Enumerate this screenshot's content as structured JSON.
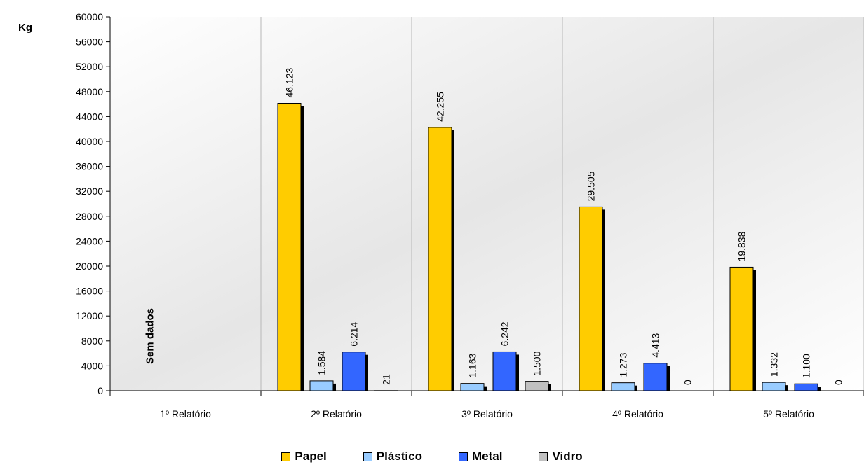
{
  "chart_data": {
    "type": "bar",
    "ylabel": "Kg",
    "ylim": [
      0,
      60000
    ],
    "yticks": [
      0,
      4000,
      8000,
      12000,
      16000,
      20000,
      24000,
      28000,
      32000,
      36000,
      40000,
      44000,
      48000,
      52000,
      56000,
      60000
    ],
    "categories": [
      "1º Relatório",
      "2º Relatório",
      "3º Relatório",
      "4º Relatório",
      "5º Relatório"
    ],
    "series": [
      {
        "name": "Papel",
        "color": "#FFCC00",
        "values": [
          null,
          46123,
          42255,
          29505,
          19838
        ],
        "labels": [
          "",
          "46.123",
          "42.255",
          "29.505",
          "19.838"
        ]
      },
      {
        "name": "Plástico",
        "color": "#99CCFF",
        "values": [
          null,
          1584,
          1163,
          1273,
          1332
        ],
        "labels": [
          "",
          "1.584",
          "1.163",
          "1.273",
          "1.332"
        ]
      },
      {
        "name": "Metal",
        "color": "#3366FF",
        "values": [
          null,
          6214,
          6242,
          4413,
          1100
        ],
        "labels": [
          "",
          "6.214",
          "6.242",
          "4.413",
          "1.100"
        ]
      },
      {
        "name": "Vidro",
        "color": "#C0C0C0",
        "values": [
          null,
          21,
          1500,
          0,
          0
        ],
        "labels": [
          "",
          "21",
          "1.500",
          "0",
          "0"
        ]
      }
    ],
    "annotations": [
      {
        "category": "1º Relatório",
        "text": "Sem dados"
      }
    ],
    "grid": "vertical",
    "legend": "bottom"
  }
}
